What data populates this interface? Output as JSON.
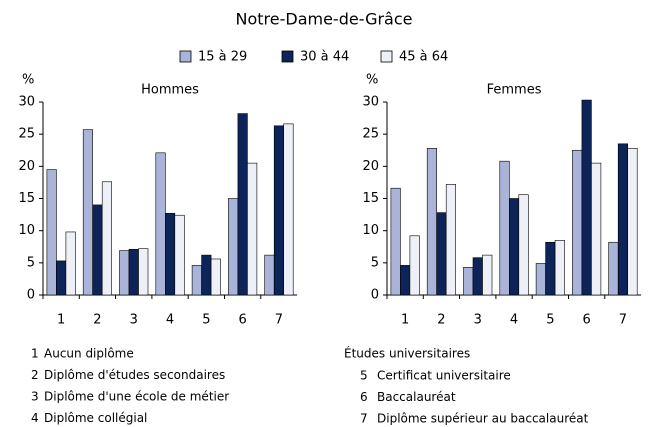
{
  "title": "Notre-Dame-de-Grâce",
  "legend": [
    {
      "name": "15 à 29",
      "color": "#a9b4d8"
    },
    {
      "name": "30 à 44",
      "color": "#0d2458"
    },
    {
      "name": "45 à 64",
      "color": "#eef0f8"
    }
  ],
  "chart_data": [
    {
      "type": "bar",
      "title": "Hommes",
      "y_label": "%",
      "categories": [
        "1",
        "2",
        "3",
        "4",
        "5",
        "6",
        "7"
      ],
      "series": [
        {
          "values": [
            19.5,
            25.7,
            6.9,
            22.1,
            4.6,
            15.0,
            6.2
          ]
        },
        {
          "values": [
            5.3,
            14.0,
            7.1,
            12.7,
            6.2,
            28.2,
            26.3
          ]
        },
        {
          "values": [
            9.8,
            17.6,
            7.2,
            12.4,
            5.6,
            20.5,
            26.6
          ]
        }
      ],
      "ylim": [
        0,
        30
      ],
      "yticks": [
        0,
        5,
        10,
        15,
        20,
        25,
        30
      ]
    },
    {
      "type": "bar",
      "title": "Femmes",
      "y_label": "%",
      "categories": [
        "1",
        "2",
        "3",
        "4",
        "5",
        "6",
        "7"
      ],
      "series": [
        {
          "values": [
            16.6,
            22.8,
            4.3,
            20.8,
            4.9,
            22.5,
            8.2
          ]
        },
        {
          "values": [
            4.6,
            12.8,
            5.8,
            15.0,
            8.2,
            30.3,
            23.5
          ]
        },
        {
          "values": [
            9.2,
            17.2,
            6.2,
            15.6,
            8.5,
            20.5,
            22.8
          ]
        }
      ],
      "ylim": [
        0,
        30
      ],
      "yticks": [
        0,
        5,
        10,
        15,
        20,
        25,
        30
      ]
    }
  ],
  "notes_left": [
    {
      "number": "1",
      "text": "Aucun diplôme"
    },
    {
      "number": "2",
      "text": "Diplôme d'études secondaires"
    },
    {
      "number": "3",
      "text": "Diplôme d'une école de métier"
    },
    {
      "number": "4",
      "text": "Diplôme collégial"
    }
  ],
  "notes_right_header": "Études universitaires",
  "notes_right": [
    {
      "number": "5",
      "text": "Certificat universitaire"
    },
    {
      "number": "6",
      "text": "Baccalauréat"
    },
    {
      "number": "7",
      "text": "Diplôme supérieur au baccalauréat"
    }
  ]
}
